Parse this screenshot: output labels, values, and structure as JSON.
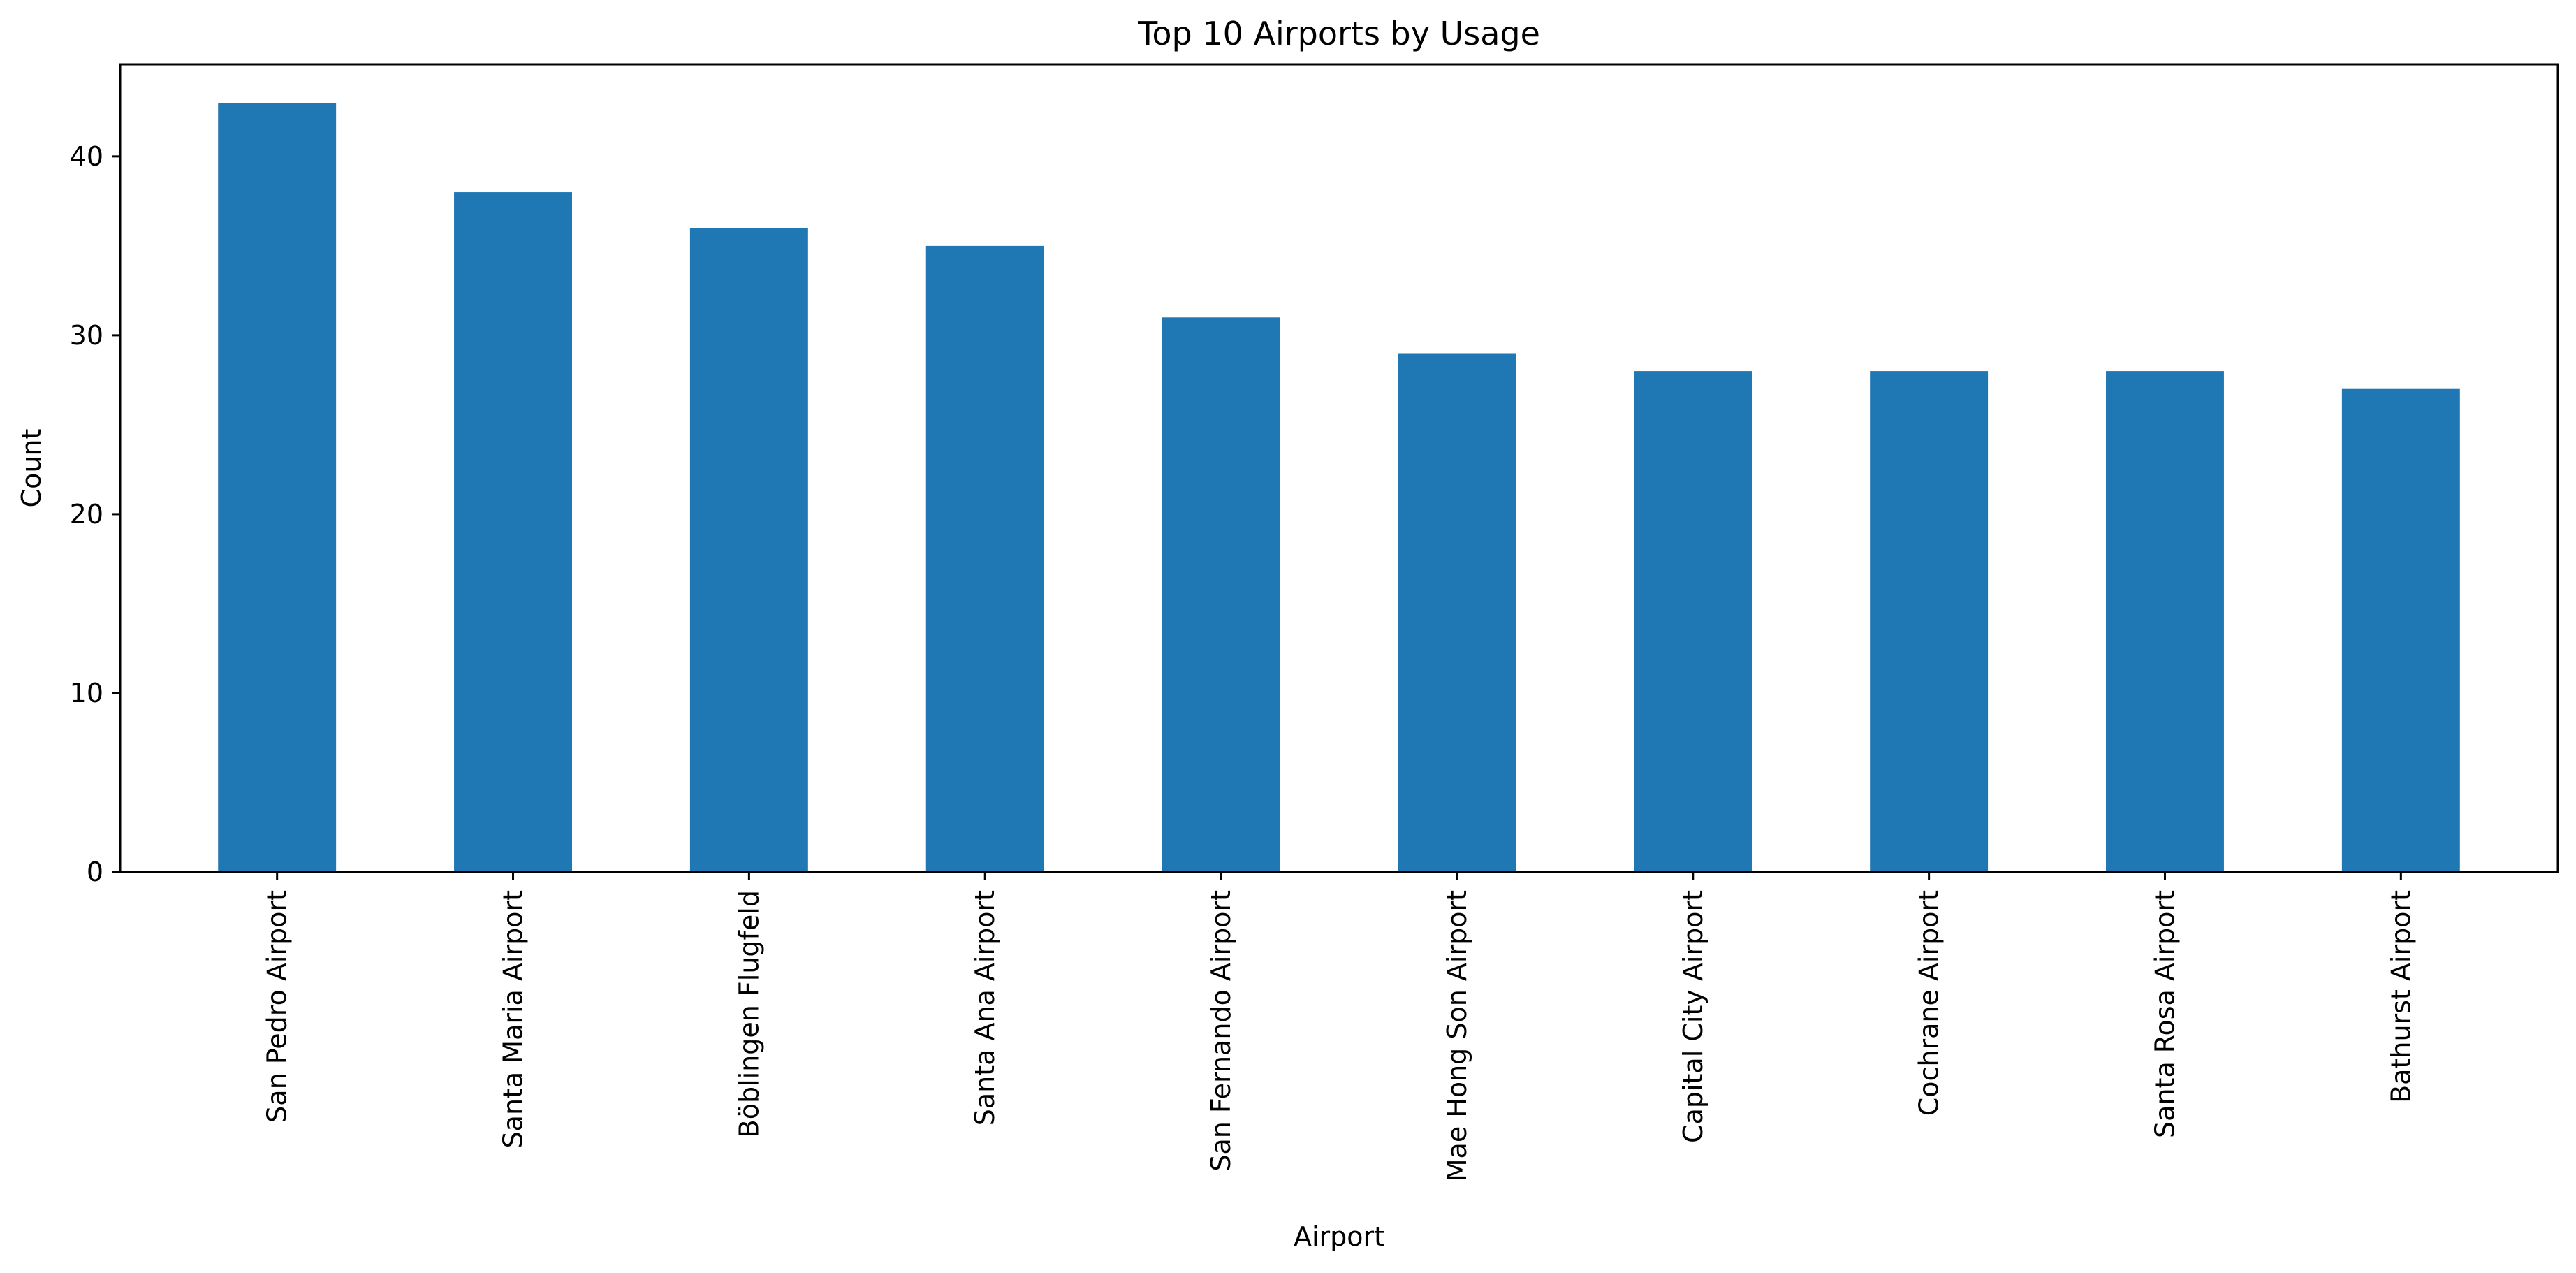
{
  "chart_data": {
    "type": "bar",
    "title": "Top 10 Airports by Usage",
    "xlabel": "Airport",
    "ylabel": "Count",
    "categories": [
      "San Pedro Airport",
      "Santa Maria Airport",
      "Böblingen Flugfeld",
      "Santa Ana Airport",
      "San Fernando Airport",
      "Mae Hong Son Airport",
      "Capital City Airport",
      "Cochrane Airport",
      "Santa Rosa Airport",
      "Bathurst Airport"
    ],
    "values": [
      43,
      38,
      36,
      35,
      31,
      29,
      28,
      28,
      28,
      27
    ],
    "ylim": [
      0,
      45.15
    ],
    "yticks": [
      0,
      10,
      20,
      30,
      40
    ],
    "grid": false,
    "bar_color": "#1f77b4"
  }
}
